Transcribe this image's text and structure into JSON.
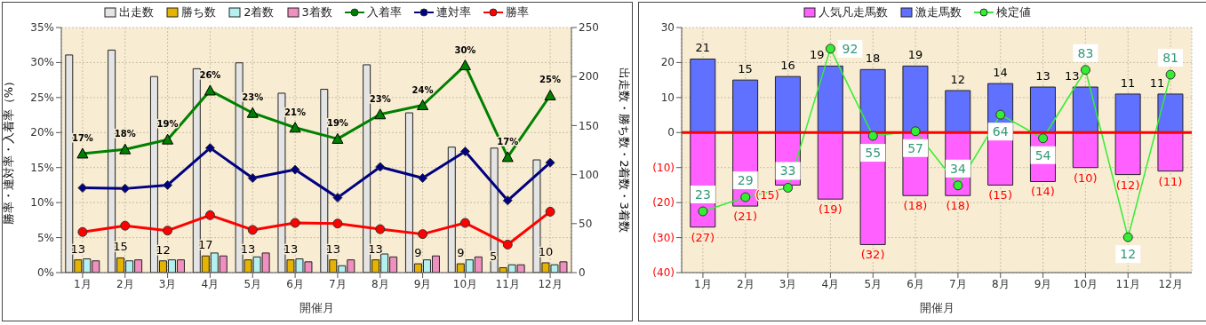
{
  "chart_data": [
    {
      "type": "bar",
      "categories": [
        "1月",
        "2月",
        "3月",
        "4月",
        "5月",
        "6月",
        "7月",
        "8月",
        "9月",
        "10月",
        "11月",
        "12月"
      ],
      "xlabel": "開催月",
      "ylabel": "勝率・連対率・入着率（%）",
      "y2label": "出走数・勝ち数・2着数・3着数",
      "ylim": [
        0,
        35
      ],
      "yticks": [
        {
          "value": 0,
          "label": "0%"
        },
        {
          "value": 5,
          "label": "5%"
        },
        {
          "value": 10,
          "label": "10%"
        },
        {
          "value": 15,
          "label": "15%"
        },
        {
          "value": 20,
          "label": "20%"
        },
        {
          "value": 25,
          "label": "25%"
        },
        {
          "value": 30,
          "label": "30%"
        },
        {
          "value": 35,
          "label": "35%"
        }
      ],
      "y2lim": [
        0,
        250
      ],
      "y2ticks": [
        0,
        50,
        100,
        150,
        200,
        250
      ],
      "grid": true,
      "legend": "top",
      "series": [
        {
          "name": "出走数",
          "axis": "y2",
          "color": "#e4e4e4",
          "values": [
            222,
            227,
            200,
            208,
            214,
            183,
            187,
            212,
            163,
            128,
            127,
            115
          ]
        },
        {
          "name": "勝ち数",
          "axis": "y2",
          "color": "#e6b400",
          "values": [
            13,
            15,
            12,
            17,
            13,
            13,
            13,
            13,
            9,
            9,
            5,
            10
          ],
          "value_labels": [
            "13",
            "15",
            "12",
            "17",
            "13",
            "13",
            "13",
            "13",
            "9",
            "9",
            "5",
            "10"
          ]
        },
        {
          "name": "2着数",
          "axis": "y2",
          "color": "#b4f0f0",
          "values": [
            14,
            12,
            13,
            20,
            16,
            14,
            7,
            19,
            13,
            13,
            8,
            8
          ]
        },
        {
          "name": "3着数",
          "axis": "y2",
          "color": "#f090c0",
          "values": [
            12,
            13,
            13,
            17,
            20,
            11,
            13,
            16,
            17,
            16,
            8,
            11
          ]
        },
        {
          "name": "入着率",
          "type": "line",
          "marker": "triangle",
          "color": "#008000",
          "values": [
            17.0,
            17.6,
            19.0,
            26.0,
            22.8,
            20.7,
            19.1,
            22.6,
            23.9,
            29.6,
            16.5,
            25.3
          ],
          "value_labels": [
            "17%",
            "18%",
            "19%",
            "26%",
            "23%",
            "21%",
            "19%",
            "23%",
            "24%",
            "30%",
            "17%",
            "25%"
          ]
        },
        {
          "name": "連対率",
          "type": "line",
          "marker": "diamond",
          "color": "#000080",
          "values": [
            12.1,
            12.0,
            12.5,
            17.8,
            13.5,
            14.7,
            10.7,
            15.1,
            13.5,
            17.3,
            10.3,
            15.7
          ]
        },
        {
          "name": "勝率",
          "type": "line",
          "marker": "circle",
          "color": "#ff0000",
          "values": [
            5.8,
            6.7,
            6.0,
            8.2,
            6.1,
            7.1,
            7.0,
            6.2,
            5.5,
            7.1,
            4.0,
            8.7
          ]
        }
      ]
    },
    {
      "type": "bar",
      "categories": [
        "1月",
        "2月",
        "3月",
        "4月",
        "5月",
        "6月",
        "7月",
        "8月",
        "9月",
        "10月",
        "11月",
        "12月"
      ],
      "xlabel": "開催月",
      "ylim": [
        -40,
        30
      ],
      "yticks": [
        {
          "value": -40,
          "label": "(40)"
        },
        {
          "value": -30,
          "label": "(30)"
        },
        {
          "value": -20,
          "label": "(20)"
        },
        {
          "value": -10,
          "label": "(10)"
        },
        0,
        10,
        20,
        30
      ],
      "y2lim": [
        -3,
        101
      ],
      "grid": true,
      "legend": "top",
      "stacked": true,
      "ref_lines": [
        {
          "axis": "y",
          "value": 0,
          "color": "#ff0000"
        }
      ],
      "series": [
        {
          "name": "人気凡走馬数",
          "color": "#ff60ff",
          "values": [
            -27,
            -21,
            -15,
            -19,
            -32,
            -18,
            -18,
            -15,
            -14,
            -10,
            -12,
            -11
          ],
          "value_labels": [
            "(27)",
            "(21)",
            "(15)",
            "(19)",
            "(32)",
            "(18)",
            "(18)",
            "(15)",
            "(14)",
            "(10)",
            "(12)",
            "(11)"
          ]
        },
        {
          "name": "激走馬数",
          "color": "#6070ff",
          "values": [
            21,
            15,
            16,
            19,
            18,
            19,
            12,
            14,
            13,
            13,
            11,
            11
          ],
          "value_labels": [
            "21",
            "15",
            "16",
            "19",
            "18",
            "19",
            "12",
            "14",
            "13",
            "13",
            "11",
            "11"
          ]
        },
        {
          "name": "検定値",
          "type": "line",
          "axis": "y2",
          "marker": "circle",
          "color": "#33ee33",
          "values": [
            23,
            29,
            33,
            92,
            55,
            57,
            34,
            64,
            54,
            83,
            12,
            81
          ],
          "value_labels": [
            "23",
            "29",
            "33",
            "92",
            "55",
            "57",
            "34",
            "64",
            "54",
            "83",
            "12",
            "81"
          ]
        }
      ]
    }
  ]
}
